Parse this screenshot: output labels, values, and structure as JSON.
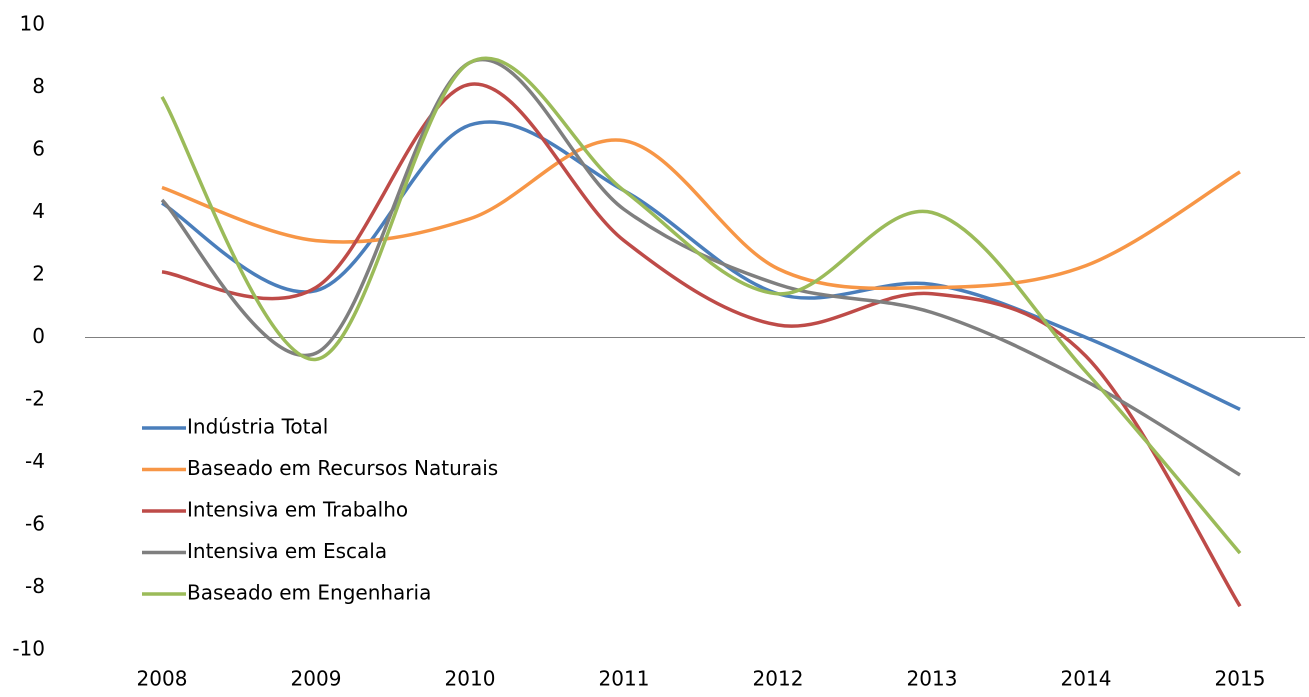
{
  "chart_data": {
    "type": "line",
    "categories": [
      "2008",
      "2009",
      "2010",
      "2011",
      "2012",
      "2013",
      "2014",
      "2015"
    ],
    "series": [
      {
        "name": "Indústria Total",
        "color": "#4a7ebb",
        "values": [
          4.3,
          1.5,
          6.8,
          4.7,
          1.4,
          1.7,
          0.0,
          -2.3
        ]
      },
      {
        "name": "Baseado em Recursos Naturais",
        "color": "#f79646",
        "values": [
          4.8,
          3.1,
          3.8,
          6.3,
          2.2,
          1.6,
          2.3,
          5.3
        ]
      },
      {
        "name": "Intensiva em Trabalho",
        "color": "#be4b48",
        "values": [
          2.1,
          1.6,
          8.1,
          3.1,
          0.4,
          1.4,
          -0.6,
          -8.6
        ]
      },
      {
        "name": "Intensiva em Escala",
        "color": "#7f7f7f",
        "values": [
          4.4,
          -0.5,
          8.8,
          4.1,
          1.7,
          0.8,
          -1.4,
          -4.4
        ]
      },
      {
        "name": "Baseado em Engenharia",
        "color": "#9bbb59",
        "values": [
          7.7,
          -0.7,
          8.8,
          4.7,
          1.4,
          4.0,
          -1.1,
          -6.9
        ]
      }
    ],
    "ylim": [
      -10,
      10
    ],
    "yticks": [
      -10,
      -8,
      -6,
      -4,
      -2,
      0,
      2,
      4,
      6,
      8,
      10
    ],
    "legend": "lower left",
    "smooth": true
  }
}
